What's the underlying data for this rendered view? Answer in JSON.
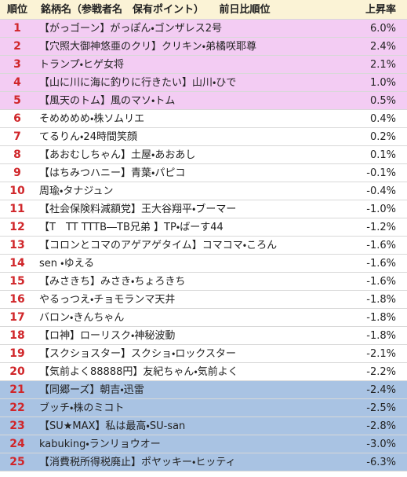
{
  "table": {
    "header": [
      "順位",
      "銘柄名（参戦者名　保有ポイント）　　前日比順位",
      "上昇率"
    ],
    "rows": [
      [
        "1",
        "【がっゴーン】がっぽん・ゴンザレス2号",
        "6.0%"
      ],
      [
        "2",
        "【穴照大御神悠亜のクリ】クリキン・弟橘咲耶尊",
        "2.4%"
      ],
      [
        "3",
        "トランプ・ヒゲ女将",
        "2.1%"
      ],
      [
        "4",
        "【山に川に海に釣りに行きたい】山川・ひで",
        "1.0%"
      ],
      [
        "5",
        "【風天のトム】風のマソ・トム",
        "0.5%"
      ],
      [
        "6",
        "そめめめめ・株ソムリエ",
        "0.4%"
      ],
      [
        "7",
        "てるりん・24時間笑顔",
        "0.2%"
      ],
      [
        "8",
        "【あおむしちゃん】土屋・あおあし",
        "0.1%"
      ],
      [
        "9",
        "【はちみつハニー】青葉・パピコ",
        "-0.1%"
      ],
      [
        "10",
        "周瑜・タナジュン",
        "-0.4%"
      ],
      [
        "11",
        "【社会保険料減額党】王大谷翔平・ブーマー",
        "-1.0%"
      ],
      [
        "12",
        "【T　TT TTTB―TB兄弟 】TP・ばーす44",
        "-1.2%"
      ],
      [
        "13",
        "【コロンとコマのアゲアゲタイム】コマコマ・ころん",
        "-1.6%"
      ],
      [
        "14",
        "sen ・ゆえる",
        "-1.6%"
      ],
      [
        "15",
        "【みさきち】みさき・ちょろきち",
        "-1.6%"
      ],
      [
        "16",
        "やるっつえ・チョモランマ天井",
        "-1.8%"
      ],
      [
        "17",
        "バロン・きんちゃん",
        "-1.8%"
      ],
      [
        "18",
        "【ロ神】ローリスク・神秘波動",
        "-1.8%"
      ],
      [
        "19",
        "【スクショスター】スクショ・ロックスター",
        "-2.1%"
      ],
      [
        "20",
        "【気前よく88888円】友紀ちゃん・気前よく",
        "-2.2%"
      ],
      [
        "21",
        "【同郷ーズ】朝吉・迅雷",
        "-2.4%"
      ],
      [
        "22",
        "ブッチ・株のミコト",
        "-2.5%"
      ],
      [
        "23",
        "【SU★MAX】私は最高・SU-san",
        "-2.8%"
      ],
      [
        "24",
        "kabuking・ランリョウオー",
        "-3.0%"
      ],
      [
        "25",
        "【消費税所得税廃止】ポヤッキー・ヒッティ",
        "-6.3%"
      ]
    ]
  }
}
